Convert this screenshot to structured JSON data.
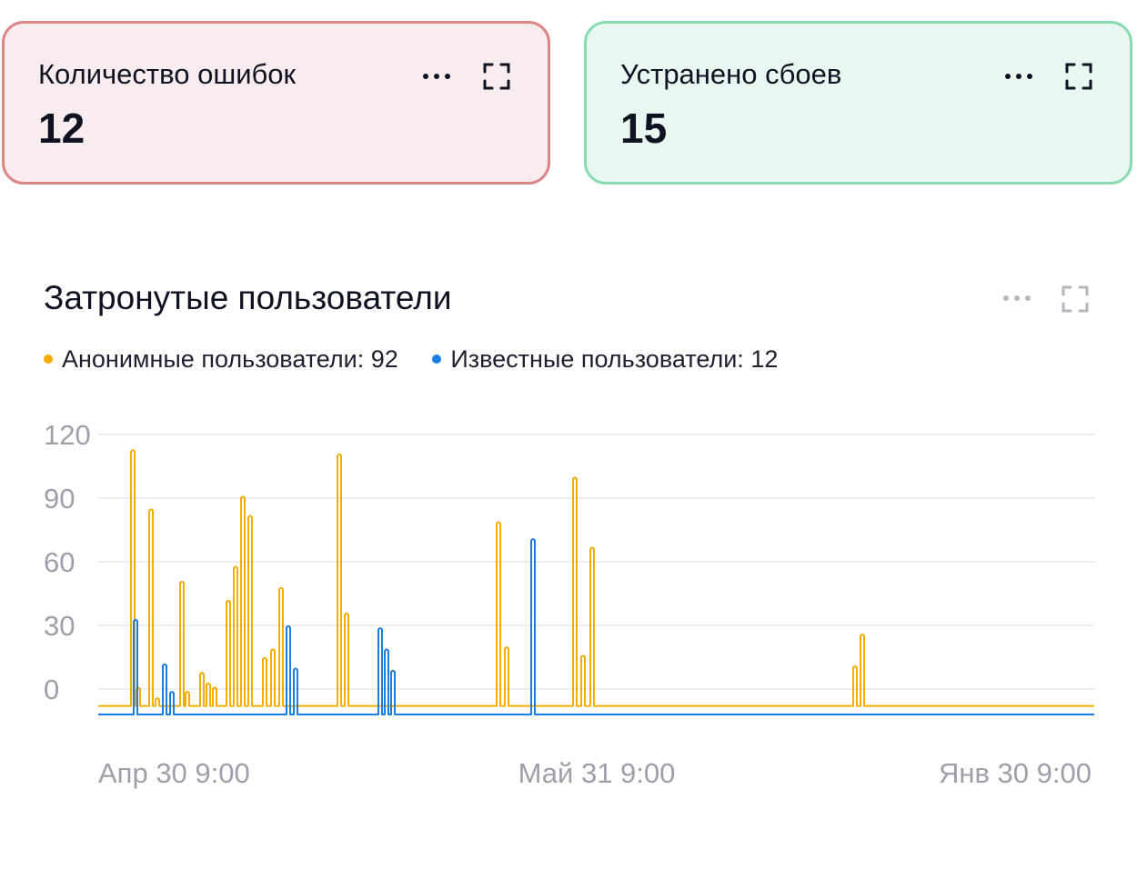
{
  "cards": [
    {
      "title": "Количество ошибок",
      "value": "12",
      "accent": "#dc8585",
      "bg": "#f8ecee"
    },
    {
      "title": "Устранено сбоев",
      "value": "15",
      "accent": "#86dcb0",
      "bg": "#e8f8f1"
    }
  ],
  "icons": {
    "more": "more-dots-icon",
    "expand": "expand-icon"
  },
  "chart_data": {
    "type": "line",
    "title": "Затронутые пользователи",
    "legend_placement": "top-left",
    "grid": true,
    "ylim": [
      -10,
      120
    ],
    "yticks": [
      0,
      30,
      60,
      90,
      120
    ],
    "xticks": [
      "Апр 30 9:00",
      "Май 31 9:00",
      "Янв 30 9:00"
    ],
    "series": [
      {
        "name": "Анонимные пользователи: 92",
        "color": "#f5ac00",
        "baseline": -8,
        "spikes": [
          [
            146,
            112
          ],
          [
            152,
            0
          ],
          [
            166,
            84
          ],
          [
            173,
            -5
          ],
          [
            200,
            50
          ],
          [
            206,
            -2
          ],
          [
            222,
            7
          ],
          [
            229,
            2
          ],
          [
            236,
            0
          ],
          [
            251,
            41
          ],
          [
            259,
            57
          ],
          [
            267,
            90
          ],
          [
            275,
            81
          ],
          [
            291,
            14
          ],
          [
            300,
            18
          ],
          [
            309,
            47
          ],
          [
            373,
            110
          ],
          [
            381,
            35
          ],
          [
            548,
            78
          ],
          [
            557,
            19
          ],
          [
            632,
            99
          ],
          [
            641,
            15
          ],
          [
            651,
            66
          ],
          [
            940,
            10
          ],
          [
            948,
            25
          ]
        ]
      },
      {
        "name": "Известные пользователи: 12",
        "color": "#1a7fe0",
        "baseline": -12,
        "spikes": [
          [
            149,
            32
          ],
          [
            181,
            11
          ],
          [
            189,
            -2
          ],
          [
            317,
            29
          ],
          [
            325,
            9
          ],
          [
            418,
            28
          ],
          [
            425,
            18
          ],
          [
            432,
            8
          ],
          [
            586,
            70
          ]
        ]
      }
    ]
  }
}
